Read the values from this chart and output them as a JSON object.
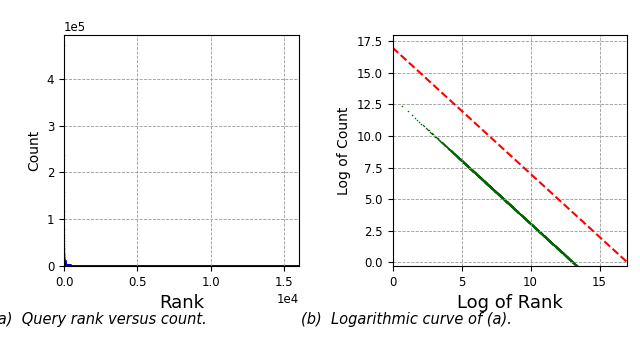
{
  "fig_width": 6.4,
  "fig_height": 3.5,
  "dpi": 100,
  "subplot_a": {
    "xlabel": "Rank",
    "ylabel": "Count",
    "xlabel_fontsize": 13,
    "ylabel_fontsize": 10,
    "tick_fontsize": 8.5,
    "n_points": 16000,
    "scale": 470000,
    "dot_color": "#0000cc",
    "dot_size": 1.2,
    "grid_color": "#999999",
    "grid_linestyle": "--",
    "caption": "(a)  Query rank versus count."
  },
  "subplot_b": {
    "xlabel": "Log of Rank",
    "ylabel": "Log of Count",
    "xlabel_fontsize": 13,
    "ylabel_fontsize": 10,
    "tick_fontsize": 8.5,
    "n_log_points": 24000000,
    "scale": 470000,
    "dot_color": "#006600",
    "dot_size": 1.2,
    "line_color": "#ff0000",
    "line_style": "--",
    "line_width": 1.5,
    "line_intercept": 17.0,
    "line_slope": -1.0,
    "grid_color": "#999999",
    "grid_linestyle": "--",
    "caption": "(b)  Logarithmic curve of (a).",
    "xlim": [
      0,
      17
    ],
    "ylim": [
      -0.3,
      18
    ],
    "yticks": [
      0.0,
      2.5,
      5.0,
      7.5,
      10.0,
      12.5,
      15.0,
      17.5
    ],
    "xticks": [
      0,
      5,
      10,
      15
    ]
  },
  "caption_fontsize": 10.5,
  "background_color": "#ffffff"
}
